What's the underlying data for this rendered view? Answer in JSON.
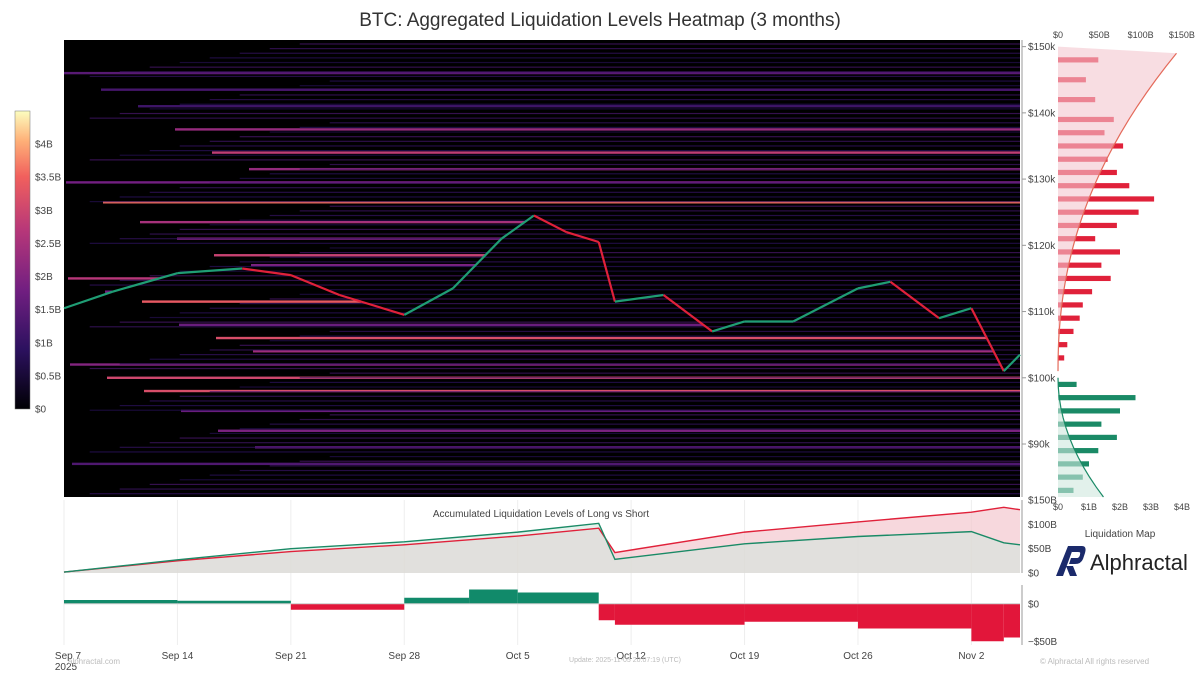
{
  "title": "BTC: Aggregated Liquidation Levels Heatmap (3 months)",
  "colorbar": {
    "labels": [
      "$4B",
      "$3.5B",
      "$3B",
      "$2.5B",
      "$2B",
      "$1.5B",
      "$1B",
      "$0.5B",
      "$0"
    ]
  },
  "heatmap_yaxis": {
    "labels": [
      "$150k",
      "$140k",
      "$130k",
      "$120k",
      "$110k",
      "$100k",
      "$90k"
    ]
  },
  "side_panel": {
    "top_axis_labels": [
      "$0",
      "$50B",
      "$100B",
      "$150B"
    ],
    "bottom_axis_labels": [
      "$0",
      "$1B",
      "$2B",
      "$3B",
      "$4B"
    ],
    "caption": "Liquidation Map"
  },
  "accumulated_panel": {
    "title": "Accumulated Liquidation Levels of Long vs Short",
    "ylabels": [
      "$150B",
      "$100B",
      "$50B",
      "$0"
    ]
  },
  "difference_panel": {
    "ylabels": [
      "$0",
      "−$50B"
    ]
  },
  "xaxis": {
    "labels": [
      "Sep 7",
      "Sep 14",
      "Sep 21",
      "Sep 28",
      "Oct 5",
      "Oct 12",
      "Oct 19",
      "Oct 26",
      "Nov 2"
    ],
    "year": "2025"
  },
  "footer": {
    "left": "alphractal.com",
    "center": "Update: 2025-11-05 20:07:19 (UTC)",
    "right": "© Alphractal All rights reserved"
  },
  "brand": {
    "name": "Alphractal"
  },
  "colors": {
    "heatmap_bg": "#000000",
    "candle_up": "#1f9d74",
    "candle_down": "#e0213a",
    "long_fill": "#f4c7cf",
    "short_fill": "#cfe8dd",
    "long_line": "#e0213a",
    "short_line": "#1a8a66",
    "diff_pos": "#118a6a",
    "diff_neg": "#e2163a"
  },
  "chart_data": [
    {
      "type": "heatmap",
      "title": "BTC: Aggregated Liquidation Levels Heatmap (3 months)",
      "x_range": [
        "2025-09-07",
        "2025-11-05"
      ],
      "y_range": [
        82000,
        151000
      ],
      "color_range": [
        0,
        4.0
      ],
      "color_unit": "B USD",
      "price_series": {
        "x": [
          "2025-09-07",
          "2025-09-10",
          "2025-09-14",
          "2025-09-18",
          "2025-09-21",
          "2025-09-24",
          "2025-09-28",
          "2025-10-01",
          "2025-10-04",
          "2025-10-06",
          "2025-10-08",
          "2025-10-10",
          "2025-10-11",
          "2025-10-14",
          "2025-10-17",
          "2025-10-19",
          "2025-10-22",
          "2025-10-26",
          "2025-10-28",
          "2025-10-31",
          "2025-11-02",
          "2025-11-04",
          "2025-11-05"
        ],
        "y": [
          110500,
          113000,
          115800,
          116500,
          115500,
          112500,
          109500,
          113500,
          121000,
          124500,
          122000,
          120500,
          111500,
          112500,
          107000,
          108500,
          108500,
          113500,
          114500,
          109000,
          110500,
          101000,
          103500
        ]
      },
      "liquidation_bands": [
        {
          "price": 146000,
          "intensity": 1.3
        },
        {
          "price": 143500,
          "intensity": 1.1
        },
        {
          "price": 141000,
          "intensity": 1.0
        },
        {
          "price": 137500,
          "intensity": 2.0
        },
        {
          "price": 134000,
          "intensity": 2.5
        },
        {
          "price": 131500,
          "intensity": 2.0
        },
        {
          "price": 129500,
          "intensity": 1.6
        },
        {
          "price": 126500,
          "intensity": 3.2
        },
        {
          "price": 123500,
          "intensity": 2.2
        },
        {
          "price": 121000,
          "intensity": 1.8
        },
        {
          "price": 118500,
          "intensity": 2.6
        },
        {
          "price": 117000,
          "intensity": 1.7
        },
        {
          "price": 115000,
          "intensity": 2.4
        },
        {
          "price": 113000,
          "intensity": 1.6
        },
        {
          "price": 111500,
          "intensity": 3.0
        },
        {
          "price": 108000,
          "intensity": 1.5
        },
        {
          "price": 106000,
          "intensity": 2.8
        },
        {
          "price": 104000,
          "intensity": 2.1
        },
        {
          "price": 102000,
          "intensity": 1.8
        },
        {
          "price": 100000,
          "intensity": 2.7
        },
        {
          "price": 98000,
          "intensity": 2.8
        },
        {
          "price": 95000,
          "intensity": 1.5
        },
        {
          "price": 92000,
          "intensity": 1.7
        },
        {
          "price": 89500,
          "intensity": 1.4
        },
        {
          "price": 87000,
          "intensity": 1.2
        }
      ]
    },
    {
      "type": "bar",
      "title": "Liquidation Map",
      "orientation": "horizontal",
      "categories": [
        148000,
        145000,
        142000,
        139000,
        137000,
        135000,
        133000,
        131000,
        129000,
        127000,
        125000,
        123000,
        121000,
        119000,
        117000,
        115000,
        113000,
        111000,
        109000,
        107000,
        105000,
        103000,
        99000,
        97000,
        95000,
        93000,
        91000,
        89000,
        87000,
        85000,
        83000
      ],
      "series": [
        {
          "name": "Long",
          "values": [
            1.3,
            0.9,
            1.2,
            1.8,
            1.5,
            2.1,
            1.6,
            1.9,
            2.3,
            3.1,
            2.6,
            1.9,
            1.2,
            2.0,
            1.4,
            1.7,
            1.1,
            0.8,
            0.7,
            0.5,
            0.3,
            0.2,
            0,
            0,
            0,
            0,
            0,
            0,
            0,
            0,
            0
          ]
        },
        {
          "name": "Short",
          "values": [
            0,
            0,
            0,
            0,
            0,
            0,
            0,
            0,
            0,
            0,
            0,
            0,
            0,
            0,
            0,
            0,
            0,
            0,
            0,
            0,
            0,
            0,
            0.6,
            2.5,
            2.0,
            1.4,
            1.9,
            1.3,
            1.0,
            0.8,
            0.5
          ]
        }
      ],
      "cumulative_long_max": 150,
      "cumulative_short_max": 55,
      "xlim_top": [
        0,
        150
      ],
      "xlim_bottom": [
        0,
        4
      ],
      "unit": "B USD"
    },
    {
      "type": "area",
      "title": "Accumulated Liquidation Levels of Long vs Short",
      "x": [
        "2025-09-07",
        "2025-09-14",
        "2025-09-21",
        "2025-09-28",
        "2025-10-05",
        "2025-10-10",
        "2025-10-11",
        "2025-10-19",
        "2025-10-26",
        "2025-11-02",
        "2025-11-04",
        "2025-11-05"
      ],
      "series": [
        {
          "values": [
            2,
            25,
            44,
            58,
            76,
            92,
            42,
            84,
            105,
            125,
            135,
            130
          ]
        },
        {
          "values": [
            2,
            27,
            50,
            64,
            84,
            102,
            28,
            60,
            75,
            85,
            62,
            58
          ]
        }
      ],
      "ylim": [
        0,
        150
      ],
      "unit": "B USD"
    },
    {
      "type": "area",
      "x": [
        "2025-09-07",
        "2025-09-14",
        "2025-09-21",
        "2025-09-28",
        "2025-10-02",
        "2025-10-05",
        "2025-10-10",
        "2025-10-11",
        "2025-10-19",
        "2025-10-26",
        "2025-11-02",
        "2025-11-04",
        "2025-11-05"
      ],
      "values": [
        1,
        5,
        4,
        -8,
        8,
        19,
        15,
        -22,
        -28,
        -24,
        -33,
        -50,
        -45
      ],
      "ylim": [
        -55,
        25
      ],
      "unit": "B USD"
    }
  ]
}
